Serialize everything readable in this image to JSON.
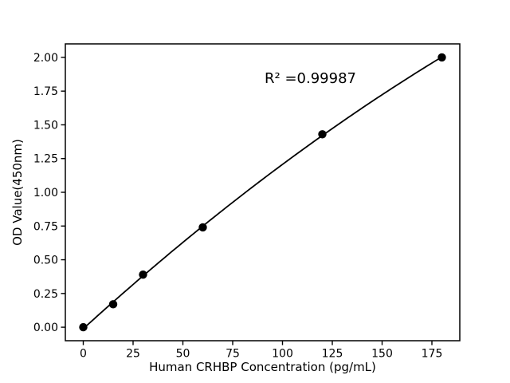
{
  "chart_data": {
    "type": "line",
    "series": [
      {
        "name": "standard-curve",
        "x": [
          0,
          15,
          30,
          60,
          120,
          180
        ],
        "y": [
          0.0,
          0.17,
          0.39,
          0.74,
          1.43,
          2.0
        ],
        "marker": "filled-circle",
        "marker_color": "#000000",
        "line_color": "#000000",
        "fit": "quadratic"
      }
    ],
    "title": "",
    "xlabel": "Human CRHBP Concentration (pg/mL)",
    "ylabel": "OD Value(450nm)",
    "annotation": {
      "text": "R² =0.99987",
      "x": 114,
      "y": 1.85
    },
    "xticks": [
      0,
      25,
      50,
      75,
      100,
      125,
      150,
      175
    ],
    "xticklabels": [
      "0",
      "25",
      "50",
      "75",
      "100",
      "125",
      "150",
      "175"
    ],
    "yticks": [
      0,
      0.25,
      0.5,
      0.75,
      1,
      1.25,
      1.5,
      1.75,
      2
    ],
    "yticklabels": [
      "0.00",
      "0.25",
      "0.50",
      "0.75",
      "1.00",
      "1.25",
      "1.50",
      "1.75",
      "2.00"
    ],
    "xlim": [
      -9,
      189
    ],
    "ylim": [
      -0.1,
      2.1
    ],
    "grid": false,
    "legend": "none",
    "background": "#ffffff",
    "frame_color": "#000000"
  }
}
